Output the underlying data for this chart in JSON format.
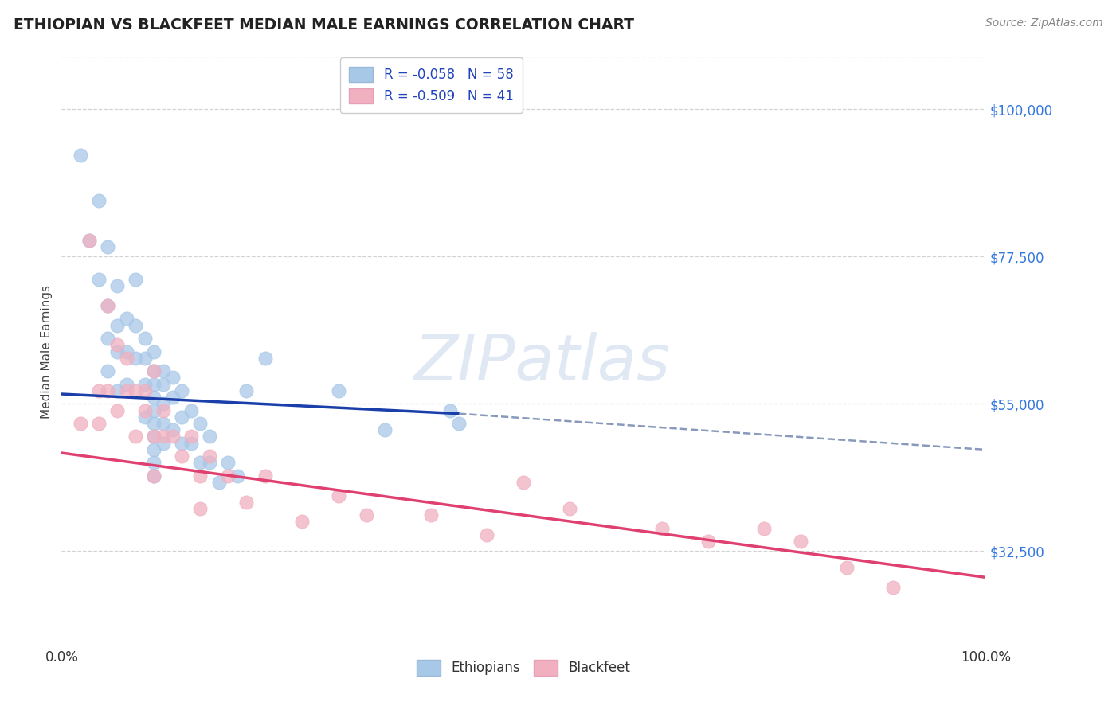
{
  "title": "ETHIOPIAN VS BLACKFEET MEDIAN MALE EARNINGS CORRELATION CHART",
  "source": "Source: ZipAtlas.com",
  "ylabel": "Median Male Earnings",
  "xlim": [
    0.0,
    1.0
  ],
  "ylim": [
    18000,
    108000
  ],
  "yticks": [
    32500,
    55000,
    77500,
    100000
  ],
  "ytick_labels": [
    "$32,500",
    "$55,000",
    "$77,500",
    "$100,000"
  ],
  "xtick_labels": [
    "0.0%",
    "100.0%"
  ],
  "legend_labels": [
    "R = -0.058   N = 58",
    "R = -0.509   N = 41"
  ],
  "blue_color": "#a8c8e8",
  "pink_color": "#f0b0c0",
  "blue_line_color": "#1a3faa",
  "pink_line_color": "#e04070",
  "watermark": "ZIPatlas",
  "background_color": "#ffffff",
  "grid_color": "#c8c8c8",
  "blue_line_x0": 0.0,
  "blue_line_y0": 56500,
  "blue_line_x1": 0.43,
  "blue_line_y1": 53500,
  "dash_line_x0": 0.43,
  "dash_line_y0": 53500,
  "dash_line_x1": 1.0,
  "dash_line_y1": 48000,
  "pink_line_x0": 0.0,
  "pink_line_y0": 47500,
  "pink_line_x1": 1.0,
  "pink_line_y1": 28500,
  "ethiopian_x": [
    0.02,
    0.03,
    0.04,
    0.04,
    0.05,
    0.05,
    0.05,
    0.05,
    0.06,
    0.06,
    0.06,
    0.06,
    0.07,
    0.07,
    0.07,
    0.08,
    0.08,
    0.08,
    0.09,
    0.09,
    0.09,
    0.09,
    0.1,
    0.1,
    0.1,
    0.1,
    0.1,
    0.1,
    0.1,
    0.1,
    0.1,
    0.1,
    0.11,
    0.11,
    0.11,
    0.11,
    0.11,
    0.12,
    0.12,
    0.12,
    0.13,
    0.13,
    0.13,
    0.14,
    0.14,
    0.15,
    0.15,
    0.16,
    0.16,
    0.17,
    0.18,
    0.19,
    0.2,
    0.22,
    0.3,
    0.35,
    0.42,
    0.43
  ],
  "ethiopian_y": [
    93000,
    80000,
    86000,
    74000,
    79000,
    70000,
    65000,
    60000,
    73000,
    67000,
    63000,
    57000,
    68000,
    63000,
    58000,
    74000,
    67000,
    62000,
    65000,
    62000,
    58000,
    53000,
    63000,
    60000,
    58000,
    56000,
    54000,
    52000,
    50000,
    48000,
    46000,
    44000,
    60000,
    58000,
    55000,
    52000,
    49000,
    59000,
    56000,
    51000,
    57000,
    53000,
    49000,
    54000,
    49000,
    52000,
    46000,
    50000,
    46000,
    43000,
    46000,
    44000,
    57000,
    62000,
    57000,
    51000,
    54000,
    52000
  ],
  "blackfeet_x": [
    0.02,
    0.03,
    0.04,
    0.04,
    0.05,
    0.05,
    0.06,
    0.06,
    0.07,
    0.07,
    0.08,
    0.08,
    0.09,
    0.09,
    0.1,
    0.1,
    0.1,
    0.11,
    0.11,
    0.12,
    0.13,
    0.14,
    0.15,
    0.15,
    0.16,
    0.18,
    0.2,
    0.22,
    0.26,
    0.3,
    0.33,
    0.4,
    0.46,
    0.5,
    0.55,
    0.65,
    0.7,
    0.76,
    0.8,
    0.85,
    0.9
  ],
  "blackfeet_y": [
    52000,
    80000,
    57000,
    52000,
    70000,
    57000,
    64000,
    54000,
    62000,
    57000,
    57000,
    50000,
    57000,
    54000,
    60000,
    50000,
    44000,
    54000,
    50000,
    50000,
    47000,
    50000,
    44000,
    39000,
    47000,
    44000,
    40000,
    44000,
    37000,
    41000,
    38000,
    38000,
    35000,
    43000,
    39000,
    36000,
    34000,
    36000,
    34000,
    30000,
    27000
  ]
}
